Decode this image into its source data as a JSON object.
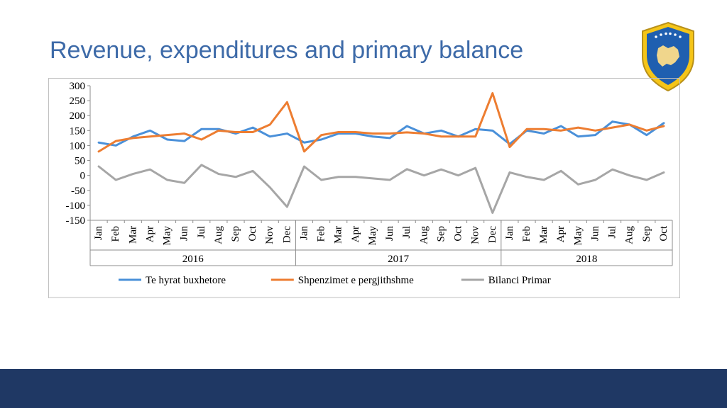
{
  "title": "Revenue, expenditures and primary balance",
  "colors": {
    "title": "#3d6aa8",
    "footer": "#1f3864",
    "series1": "#4a90d9",
    "series2": "#ed7d31",
    "series3": "#a6a6a6",
    "axis": "#8c8c8c",
    "grid": "#bfbfbf"
  },
  "chart": {
    "type": "line",
    "ylim": [
      -150,
      300
    ],
    "ytick_step": 50,
    "yticks": [
      -150,
      -100,
      -50,
      0,
      50,
      100,
      150,
      200,
      250,
      300
    ],
    "line_width": 3,
    "years": [
      {
        "label": "2016",
        "months": [
          "Jan",
          "Feb",
          "Mar",
          "Apr",
          "May",
          "Jun",
          "Jul",
          "Aug",
          "Sep",
          "Oct",
          "Nov",
          "Dec"
        ]
      },
      {
        "label": "2017",
        "months": [
          "Jan",
          "Feb",
          "Mar",
          "Apr",
          "May",
          "Jun",
          "Jul",
          "Aug",
          "Sep",
          "Oct",
          "Nov",
          "Dec"
        ]
      },
      {
        "label": "2018",
        "months": [
          "Jan",
          "Feb",
          "Mar",
          "Apr",
          "May",
          "Jun",
          "Jul",
          "Aug",
          "Sep",
          "Oct"
        ]
      }
    ],
    "series": [
      {
        "name": "Te hyrat buxhetore",
        "color": "#4a90d9",
        "values": [
          110,
          100,
          130,
          150,
          120,
          115,
          155,
          155,
          140,
          160,
          130,
          140,
          110,
          120,
          140,
          140,
          130,
          125,
          165,
          140,
          150,
          130,
          155,
          150,
          105,
          150,
          140,
          165,
          130,
          135,
          180,
          170,
          135,
          175
        ]
      },
      {
        "name": "Shpenzimet e pergjithshme",
        "color": "#ed7d31",
        "values": [
          80,
          115,
          125,
          130,
          135,
          140,
          120,
          150,
          145,
          145,
          170,
          245,
          80,
          135,
          145,
          145,
          140,
          140,
          144,
          140,
          130,
          130,
          130,
          275,
          95,
          155,
          155,
          150,
          160,
          150,
          160,
          170,
          150,
          165
        ]
      },
      {
        "name": "Bilanci Primar",
        "color": "#a6a6a6",
        "values": [
          30,
          -15,
          5,
          20,
          -15,
          -25,
          35,
          5,
          -5,
          15,
          -40,
          -105,
          30,
          -15,
          -5,
          -5,
          -10,
          -15,
          21,
          0,
          20,
          0,
          25,
          -125,
          10,
          -5,
          -15,
          15,
          -30,
          -15,
          20,
          0,
          -15,
          10
        ]
      }
    ],
    "legend_pos": "bottom"
  }
}
